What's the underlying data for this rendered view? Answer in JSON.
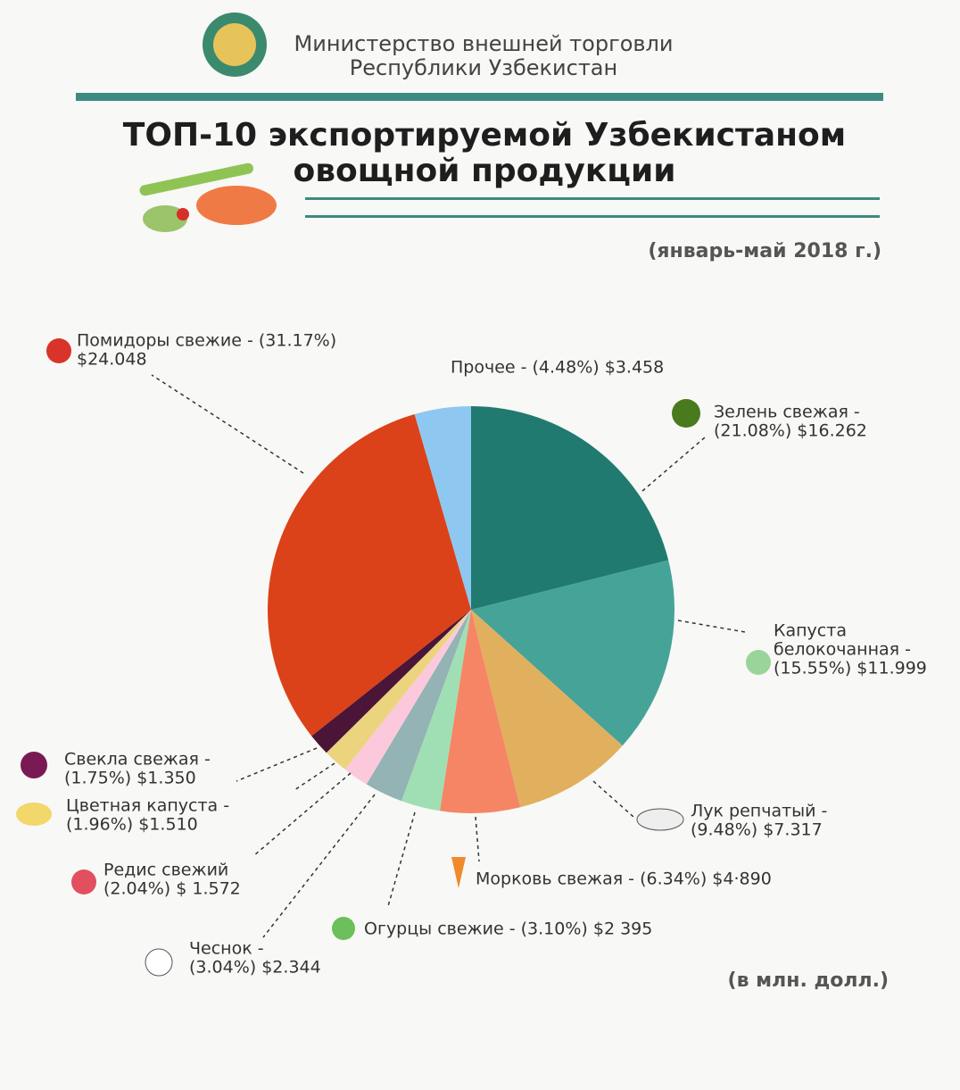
{
  "header": {
    "org_lines": [
      "Министерство внешней торговли",
      "Республики Узбекистан"
    ]
  },
  "chart_data": {
    "type": "pie",
    "title_lines": [
      "ТОП-10 экспортируемой Узбекистаном",
      "овощной продукции"
    ],
    "subtitle": "(январь-май 2018 г.)",
    "note": "(в млн. долл.)",
    "categories": [
      "Зелень свежая",
      "Капуста белокочанная",
      "Лук репчатый",
      "Морковь свежая",
      "Огурцы свежие",
      "Чеснок",
      "Редис свежий",
      "Цветная капуста",
      "Свекла свежая",
      "Помидоры свежие",
      "Прочее"
    ],
    "values": [
      21.08,
      15.55,
      9.48,
      6.34,
      3.1,
      3.04,
      2.04,
      1.96,
      1.75,
      31.17,
      4.48
    ],
    "value_labels": [
      [
        "Зелень свежая -",
        "(21.08%) $16.262"
      ],
      [
        "Капуста",
        "белокочанная -",
        "(15.55%) $11.999"
      ],
      [
        "Лук репчатый -",
        "(9.48%) $7.317"
      ],
      [
        "Морковь свежая - (6.34%) $4·890"
      ],
      [
        "Огурцы свежие - (3.10%) $2 395"
      ],
      [
        "Чеснок -",
        "(3.04%) $2.344"
      ],
      [
        "Редис свежий",
        "(2.04%) $ 1.572"
      ],
      [
        "Цветная капуста -",
        "(1.96%) $1.510"
      ],
      [
        "Свекла свежая -",
        "(1.75%) $1.350"
      ],
      [
        "Помидоры свежие - (31.17%)",
        "$24.048"
      ],
      [
        "Прочее - (4.48%) $3.458"
      ]
    ],
    "colors": [
      "#217a70",
      "#46a398",
      "#e1b05e",
      "#f68565",
      "#a0dfb4",
      "#93b3b4",
      "#fbc8dc",
      "#ecd47e",
      "#4a1537",
      "#db4219",
      "#8ec8f0"
    ]
  }
}
